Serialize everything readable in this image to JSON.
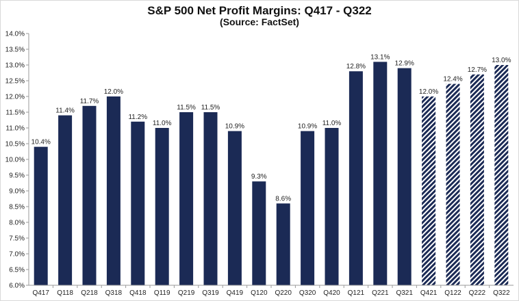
{
  "chart_data": {
    "type": "bar",
    "title": "S&P 500 Net Profit Margins: Q417 - Q322",
    "subtitle": "(Source: FactSet)",
    "xlabel": "",
    "ylabel": "",
    "ylim": [
      6.0,
      14.0
    ],
    "yticks": [
      "6.0%",
      "6.5%",
      "7.0%",
      "7.5%",
      "8.0%",
      "8.5%",
      "9.0%",
      "9.5%",
      "10.0%",
      "10.5%",
      "11.0%",
      "11.5%",
      "12.0%",
      "12.5%",
      "13.0%",
      "13.5%",
      "14.0%"
    ],
    "grid": false,
    "categories": [
      "Q417",
      "Q118",
      "Q218",
      "Q318",
      "Q418",
      "Q119",
      "Q219",
      "Q319",
      "Q419",
      "Q120",
      "Q220",
      "Q320",
      "Q420",
      "Q121",
      "Q221",
      "Q321",
      "Q421",
      "Q122",
      "Q222",
      "Q322"
    ],
    "values": [
      10.4,
      11.4,
      11.7,
      12.0,
      11.2,
      11.0,
      11.5,
      11.5,
      10.9,
      9.3,
      8.6,
      10.9,
      11.0,
      12.8,
      13.1,
      12.9,
      12.0,
      12.4,
      12.7,
      13.0
    ],
    "labels": [
      "10.4%",
      "11.4%",
      "11.7%",
      "12.0%",
      "11.2%",
      "11.0%",
      "11.5%",
      "11.5%",
      "10.9%",
      "9.3%",
      "8.6%",
      "10.9%",
      "11.0%",
      "12.8%",
      "13.1%",
      "12.9%",
      "12.0%",
      "12.4%",
      "12.7%",
      "13.0%"
    ],
    "estimate": [
      false,
      false,
      false,
      false,
      false,
      false,
      false,
      false,
      false,
      false,
      false,
      false,
      false,
      false,
      false,
      false,
      true,
      true,
      true,
      true
    ],
    "colors": {
      "actual": "#1b2a55",
      "estimate": "#1b2a55",
      "axis": "#9a9a9a"
    }
  }
}
